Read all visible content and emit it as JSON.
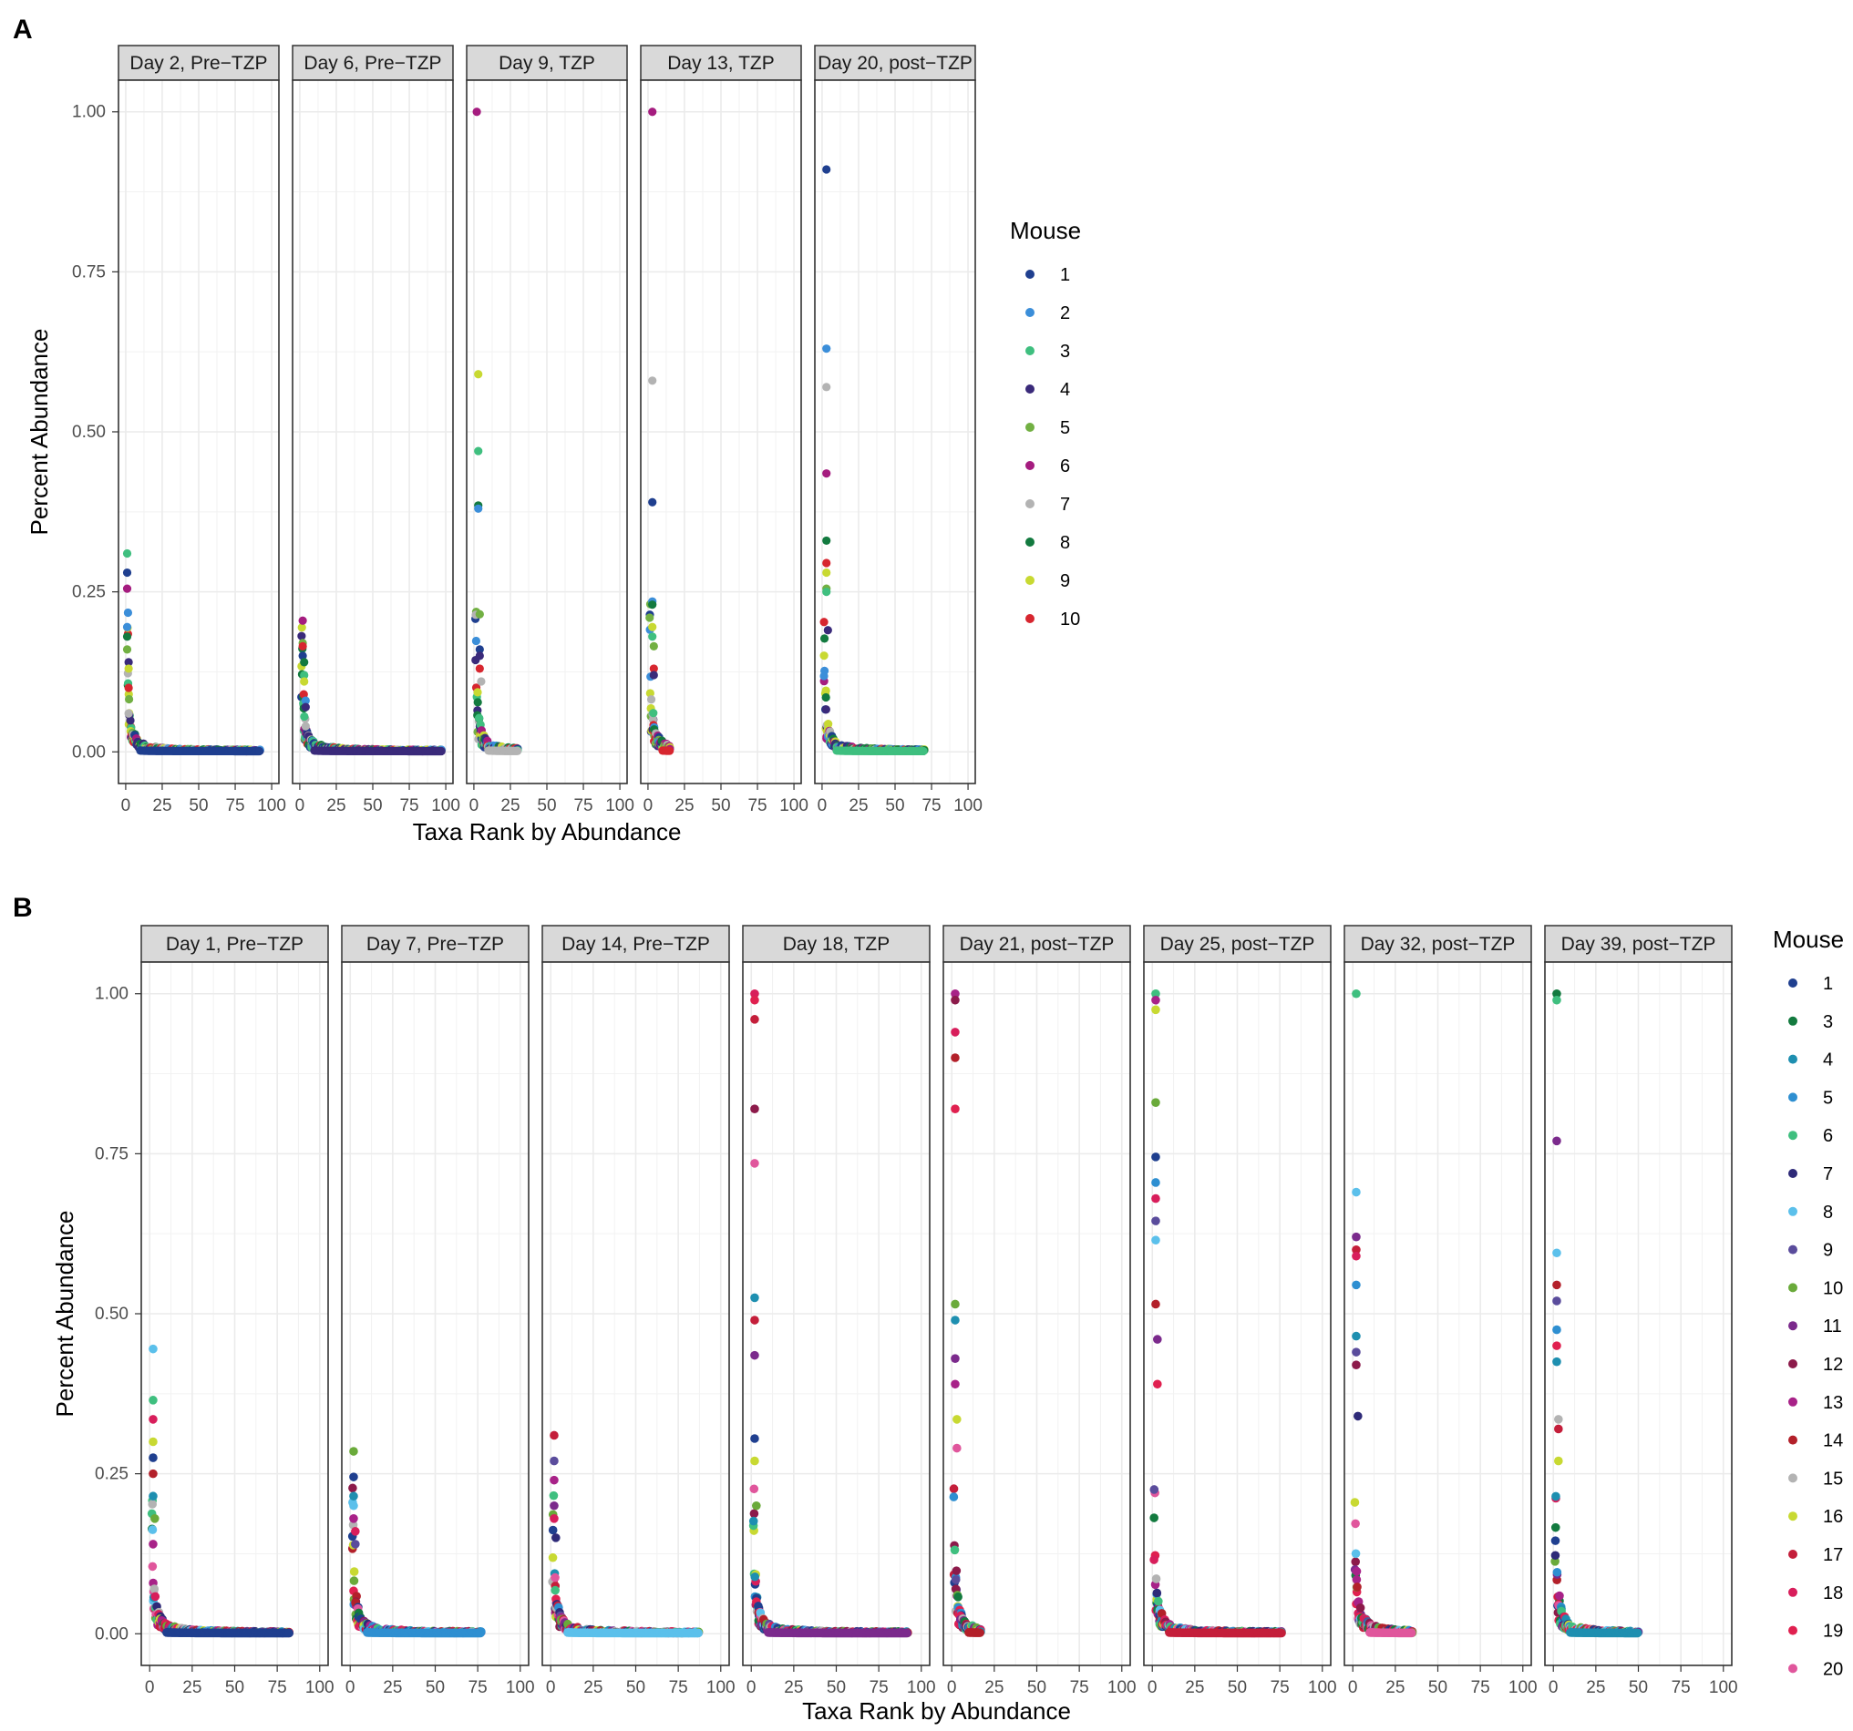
{
  "chart_data": [
    {
      "panel_label": "A",
      "type": "scatter",
      "xlabel": "Taxa Rank by Abundance",
      "ylabel": "Percent Abundance",
      "xlim": [
        0,
        100
      ],
      "ylim": [
        0,
        1
      ],
      "x_ticks": [
        "0",
        "25",
        "50",
        "75",
        "100"
      ],
      "y_ticks": [
        "0.00",
        "0.25",
        "0.50",
        "0.75",
        "1.00"
      ],
      "grid": true,
      "legend": {
        "title": "Mouse",
        "position": "right",
        "entries": [
          {
            "label": "1",
            "color": "#1f3f8f"
          },
          {
            "label": "2",
            "color": "#3b8ed9"
          },
          {
            "label": "3",
            "color": "#3fbf7f"
          },
          {
            "label": "4",
            "color": "#3a2a7a"
          },
          {
            "label": "5",
            "color": "#72b043"
          },
          {
            "label": "6",
            "color": "#a51c7f"
          },
          {
            "label": "7",
            "color": "#b3b3b3"
          },
          {
            "label": "8",
            "color": "#137a3f"
          },
          {
            "label": "9",
            "color": "#c8d932"
          },
          {
            "label": "10",
            "color": "#d7262f"
          }
        ]
      },
      "facets": [
        {
          "title": "Day 2, Pre−TZP",
          "max_rank": 92,
          "points": [
            {
              "mouse": "3",
              "x": 1,
              "y": 0.31
            },
            {
              "mouse": "1",
              "x": 1,
              "y": 0.28
            },
            {
              "mouse": "6",
              "x": 1,
              "y": 0.255
            },
            {
              "mouse": "2",
              "x": 1,
              "y": 0.195
            },
            {
              "mouse": "8",
              "x": 1,
              "y": 0.18
            },
            {
              "mouse": "5",
              "x": 1,
              "y": 0.16
            },
            {
              "mouse": "4",
              "x": 2,
              "y": 0.14
            },
            {
              "mouse": "9",
              "x": 2,
              "y": 0.13
            },
            {
              "mouse": "10",
              "x": 2,
              "y": 0.1
            },
            {
              "mouse": "7",
              "x": 2,
              "y": 0.06
            }
          ]
        },
        {
          "title": "Day 6, Pre−TZP",
          "max_rank": 97,
          "points": [
            {
              "mouse": "6",
              "x": 2,
              "y": 0.205
            },
            {
              "mouse": "5",
              "x": 2,
              "y": 0.17
            },
            {
              "mouse": "10",
              "x": 2,
              "y": 0.165
            },
            {
              "mouse": "1",
              "x": 2,
              "y": 0.15
            },
            {
              "mouse": "8",
              "x": 3,
              "y": 0.14
            },
            {
              "mouse": "3",
              "x": 3,
              "y": 0.12
            },
            {
              "mouse": "9",
              "x": 3,
              "y": 0.11
            },
            {
              "mouse": "2",
              "x": 4,
              "y": 0.08
            },
            {
              "mouse": "4",
              "x": 4,
              "y": 0.07
            },
            {
              "mouse": "7",
              "x": 4,
              "y": 0.04
            }
          ]
        },
        {
          "title": "Day 9, TZP",
          "max_rank": 30,
          "points": [
            {
              "mouse": "6",
              "x": 2,
              "y": 1.0
            },
            {
              "mouse": "9",
              "x": 3,
              "y": 0.59
            },
            {
              "mouse": "3",
              "x": 3,
              "y": 0.47
            },
            {
              "mouse": "8",
              "x": 3,
              "y": 0.385
            },
            {
              "mouse": "2",
              "x": 3,
              "y": 0.38
            },
            {
              "mouse": "5",
              "x": 4,
              "y": 0.215
            },
            {
              "mouse": "1",
              "x": 4,
              "y": 0.16
            },
            {
              "mouse": "4",
              "x": 4,
              "y": 0.15
            },
            {
              "mouse": "10",
              "x": 4,
              "y": 0.13
            },
            {
              "mouse": "7",
              "x": 5,
              "y": 0.11
            }
          ]
        },
        {
          "title": "Day 13, TZP",
          "max_rank": 15,
          "points": [
            {
              "mouse": "6",
              "x": 3,
              "y": 1.0
            },
            {
              "mouse": "7",
              "x": 3,
              "y": 0.58
            },
            {
              "mouse": "1",
              "x": 3,
              "y": 0.39
            },
            {
              "mouse": "2",
              "x": 3,
              "y": 0.235
            },
            {
              "mouse": "8",
              "x": 3,
              "y": 0.23
            },
            {
              "mouse": "9",
              "x": 3,
              "y": 0.195
            },
            {
              "mouse": "3",
              "x": 3,
              "y": 0.18
            },
            {
              "mouse": "5",
              "x": 4,
              "y": 0.165
            },
            {
              "mouse": "10",
              "x": 4,
              "y": 0.13
            },
            {
              "mouse": "4",
              "x": 4,
              "y": 0.12
            }
          ]
        },
        {
          "title": "Day 20, post−TZP",
          "max_rank": 70,
          "points": [
            {
              "mouse": "1",
              "x": 3,
              "y": 0.91
            },
            {
              "mouse": "2",
              "x": 3,
              "y": 0.63
            },
            {
              "mouse": "7",
              "x": 3,
              "y": 0.57
            },
            {
              "mouse": "6",
              "x": 3,
              "y": 0.435
            },
            {
              "mouse": "8",
              "x": 3,
              "y": 0.33
            },
            {
              "mouse": "10",
              "x": 3,
              "y": 0.295
            },
            {
              "mouse": "9",
              "x": 3,
              "y": 0.28
            },
            {
              "mouse": "5",
              "x": 3,
              "y": 0.255
            },
            {
              "mouse": "3",
              "x": 3,
              "y": 0.25
            },
            {
              "mouse": "4",
              "x": 4,
              "y": 0.19
            }
          ]
        }
      ]
    },
    {
      "panel_label": "B",
      "type": "scatter",
      "xlabel": "Taxa Rank by Abundance",
      "ylabel": "Percent Abundance",
      "xlim": [
        0,
        100
      ],
      "ylim": [
        0,
        1
      ],
      "x_ticks": [
        "0",
        "25",
        "50",
        "75",
        "100"
      ],
      "y_ticks": [
        "0.00",
        "0.25",
        "0.50",
        "0.75",
        "1.00"
      ],
      "grid": true,
      "legend": {
        "title": "Mouse",
        "position": "right",
        "entries": [
          {
            "label": "1",
            "color": "#1f3f8f"
          },
          {
            "label": "3",
            "color": "#137a3f"
          },
          {
            "label": "4",
            "color": "#1e8fb0"
          },
          {
            "label": "5",
            "color": "#2e8fd1"
          },
          {
            "label": "6",
            "color": "#3fbf7f"
          },
          {
            "label": "7",
            "color": "#2e2a78"
          },
          {
            "label": "8",
            "color": "#5bc0eb"
          },
          {
            "label": "9",
            "color": "#5a4c9c"
          },
          {
            "label": "10",
            "color": "#6aaa3a"
          },
          {
            "label": "11",
            "color": "#7b2a8c"
          },
          {
            "label": "12",
            "color": "#8c1a4a"
          },
          {
            "label": "13",
            "color": "#a82288"
          },
          {
            "label": "14",
            "color": "#b3202a"
          },
          {
            "label": "15",
            "color": "#b3b3b3"
          },
          {
            "label": "16",
            "color": "#c8d932"
          },
          {
            "label": "17",
            "color": "#c41e3a"
          },
          {
            "label": "18",
            "color": "#d81e5b"
          },
          {
            "label": "19",
            "color": "#e0204f"
          },
          {
            "label": "20",
            "color": "#e0569c"
          }
        ]
      },
      "facets": [
        {
          "title": "Day 1, Pre−TZP",
          "max_rank": 82,
          "points": [
            {
              "mouse": "8",
              "x": 2,
              "y": 0.445
            },
            {
              "mouse": "6",
              "x": 2,
              "y": 0.365
            },
            {
              "mouse": "18",
              "x": 2,
              "y": 0.335
            },
            {
              "mouse": "16",
              "x": 2,
              "y": 0.3
            },
            {
              "mouse": "1",
              "x": 2,
              "y": 0.275
            },
            {
              "mouse": "14",
              "x": 2,
              "y": 0.25
            },
            {
              "mouse": "4",
              "x": 2,
              "y": 0.215
            },
            {
              "mouse": "10",
              "x": 3,
              "y": 0.18
            },
            {
              "mouse": "13",
              "x": 2,
              "y": 0.14
            }
          ]
        },
        {
          "title": "Day 7, Pre−TZP",
          "max_rank": 77,
          "points": [
            {
              "mouse": "10",
              "x": 2,
              "y": 0.285
            },
            {
              "mouse": "1",
              "x": 2,
              "y": 0.245
            },
            {
              "mouse": "4",
              "x": 2,
              "y": 0.215
            },
            {
              "mouse": "8",
              "x": 2,
              "y": 0.2
            },
            {
              "mouse": "13",
              "x": 2,
              "y": 0.18
            },
            {
              "mouse": "18",
              "x": 3,
              "y": 0.16
            },
            {
              "mouse": "9",
              "x": 3,
              "y": 0.14
            }
          ]
        },
        {
          "title": "Day 14, Pre−TZP",
          "max_rank": 87,
          "points": [
            {
              "mouse": "17",
              "x": 2,
              "y": 0.31
            },
            {
              "mouse": "9",
              "x": 2,
              "y": 0.27
            },
            {
              "mouse": "13",
              "x": 2,
              "y": 0.24
            },
            {
              "mouse": "11",
              "x": 2,
              "y": 0.2
            },
            {
              "mouse": "18",
              "x": 2,
              "y": 0.18
            },
            {
              "mouse": "7",
              "x": 3,
              "y": 0.15
            }
          ]
        },
        {
          "title": "Day 18, TZP",
          "max_rank": 92,
          "points": [
            {
              "mouse": "18",
              "x": 2,
              "y": 1.0
            },
            {
              "mouse": "19",
              "x": 2,
              "y": 0.99
            },
            {
              "mouse": "17",
              "x": 2,
              "y": 0.96
            },
            {
              "mouse": "12",
              "x": 2,
              "y": 0.82
            },
            {
              "mouse": "20",
              "x": 2,
              "y": 0.735
            },
            {
              "mouse": "4",
              "x": 2,
              "y": 0.525
            },
            {
              "mouse": "17",
              "x": 2,
              "y": 0.49
            },
            {
              "mouse": "11",
              "x": 2,
              "y": 0.435
            },
            {
              "mouse": "1",
              "x": 2,
              "y": 0.305
            },
            {
              "mouse": "16",
              "x": 2,
              "y": 0.27
            },
            {
              "mouse": "10",
              "x": 3,
              "y": 0.2
            }
          ]
        },
        {
          "title": "Day 21, post−TZP",
          "max_rank": 17,
          "points": [
            {
              "mouse": "13",
              "x": 2,
              "y": 1.0
            },
            {
              "mouse": "12",
              "x": 2,
              "y": 0.99
            },
            {
              "mouse": "18",
              "x": 2,
              "y": 0.94
            },
            {
              "mouse": "14",
              "x": 2,
              "y": 0.9
            },
            {
              "mouse": "19",
              "x": 2,
              "y": 0.82
            },
            {
              "mouse": "10",
              "x": 2,
              "y": 0.515
            },
            {
              "mouse": "4",
              "x": 2,
              "y": 0.49
            },
            {
              "mouse": "11",
              "x": 2,
              "y": 0.43
            },
            {
              "mouse": "13",
              "x": 2,
              "y": 0.39
            },
            {
              "mouse": "16",
              "x": 3,
              "y": 0.335
            },
            {
              "mouse": "20",
              "x": 3,
              "y": 0.29
            }
          ]
        },
        {
          "title": "Day 25, post−TZP",
          "max_rank": 76,
          "points": [
            {
              "mouse": "6",
              "x": 2,
              "y": 1.0
            },
            {
              "mouse": "13",
              "x": 2,
              "y": 0.99
            },
            {
              "mouse": "16",
              "x": 2,
              "y": 0.975
            },
            {
              "mouse": "10",
              "x": 2,
              "y": 0.83
            },
            {
              "mouse": "1",
              "x": 2,
              "y": 0.745
            },
            {
              "mouse": "5",
              "x": 2,
              "y": 0.705
            },
            {
              "mouse": "18",
              "x": 2,
              "y": 0.68
            },
            {
              "mouse": "9",
              "x": 2,
              "y": 0.645
            },
            {
              "mouse": "8",
              "x": 2,
              "y": 0.615
            },
            {
              "mouse": "14",
              "x": 2,
              "y": 0.515
            },
            {
              "mouse": "11",
              "x": 3,
              "y": 0.46
            },
            {
              "mouse": "19",
              "x": 3,
              "y": 0.39
            }
          ]
        },
        {
          "title": "Day 32, post−TZP",
          "max_rank": 35,
          "points": [
            {
              "mouse": "6",
              "x": 2,
              "y": 1.0
            },
            {
              "mouse": "8",
              "x": 2,
              "y": 0.69
            },
            {
              "mouse": "11",
              "x": 2,
              "y": 0.62
            },
            {
              "mouse": "17",
              "x": 2,
              "y": 0.6
            },
            {
              "mouse": "18",
              "x": 2,
              "y": 0.59
            },
            {
              "mouse": "5",
              "x": 2,
              "y": 0.545
            },
            {
              "mouse": "4",
              "x": 2,
              "y": 0.465
            },
            {
              "mouse": "9",
              "x": 2,
              "y": 0.44
            },
            {
              "mouse": "12",
              "x": 2,
              "y": 0.42
            },
            {
              "mouse": "7",
              "x": 3,
              "y": 0.34
            }
          ]
        },
        {
          "title": "Day 39, post−TZP",
          "max_rank": 50,
          "points": [
            {
              "mouse": "3",
              "x": 2,
              "y": 1.0
            },
            {
              "mouse": "6",
              "x": 2,
              "y": 0.99
            },
            {
              "mouse": "11",
              "x": 2,
              "y": 0.77
            },
            {
              "mouse": "8",
              "x": 2,
              "y": 0.595
            },
            {
              "mouse": "14",
              "x": 2,
              "y": 0.545
            },
            {
              "mouse": "9",
              "x": 2,
              "y": 0.52
            },
            {
              "mouse": "5",
              "x": 2,
              "y": 0.475
            },
            {
              "mouse": "19",
              "x": 2,
              "y": 0.45
            },
            {
              "mouse": "4",
              "x": 2,
              "y": 0.425
            },
            {
              "mouse": "15",
              "x": 3,
              "y": 0.335
            },
            {
              "mouse": "17",
              "x": 3,
              "y": 0.32
            },
            {
              "mouse": "16",
              "x": 3,
              "y": 0.27
            }
          ]
        }
      ]
    }
  ]
}
